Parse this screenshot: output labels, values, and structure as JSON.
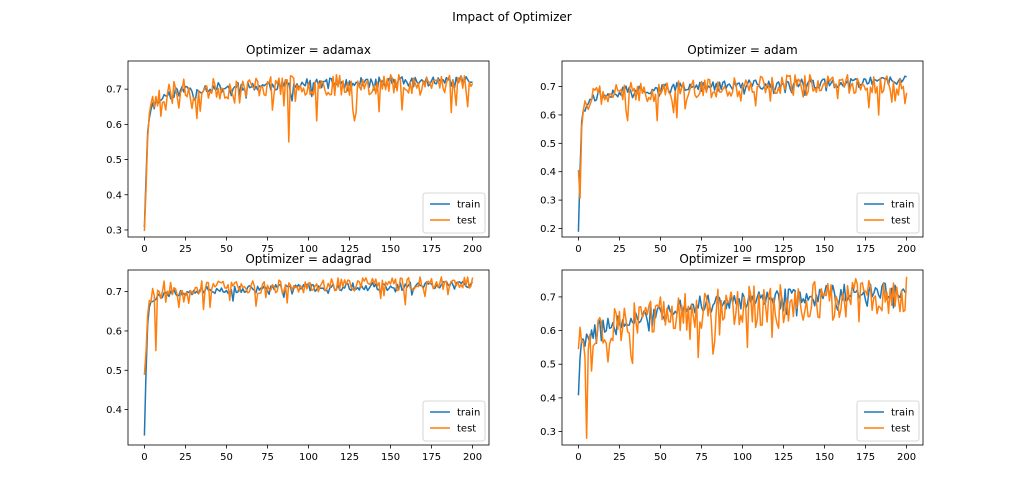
{
  "figure": {
    "title": "Impact of Optimizer"
  },
  "chart_data": [
    {
      "type": "line",
      "title": "Optimizer = adamax",
      "xlabel": "",
      "ylabel": "",
      "xlim": [
        -10,
        210
      ],
      "ylim": [
        0.28,
        0.78
      ],
      "xticks": [
        0,
        25,
        50,
        75,
        100,
        125,
        150,
        175,
        200
      ],
      "yticks": [
        0.3,
        0.4,
        0.5,
        0.6,
        0.7
      ],
      "grid": false,
      "legend": "lower-right",
      "series": [
        {
          "name": "train",
          "color": "#1f77b4",
          "seed": 11,
          "amp": 0.015,
          "points": [
            [
              0,
              0.31
            ],
            [
              1,
              0.45
            ],
            [
              2,
              0.58
            ],
            [
              3,
              0.62
            ],
            [
              5,
              0.65
            ],
            [
              8,
              0.67
            ],
            [
              12,
              0.68
            ],
            [
              18,
              0.69
            ],
            [
              25,
              0.7
            ],
            [
              50,
              0.705
            ],
            [
              75,
              0.71
            ],
            [
              100,
              0.715
            ],
            [
              150,
              0.72
            ],
            [
              200,
              0.725
            ]
          ]
        },
        {
          "name": "test",
          "color": "#ff7f0e",
          "seed": 23,
          "amp": 0.03,
          "points": [
            [
              0,
              0.3
            ],
            [
              1,
              0.42
            ],
            [
              2,
              0.56
            ],
            [
              3,
              0.63
            ],
            [
              5,
              0.66
            ],
            [
              8,
              0.67
            ],
            [
              12,
              0.68
            ],
            [
              18,
              0.7
            ],
            [
              25,
              0.7
            ],
            [
              50,
              0.7
            ],
            [
              75,
              0.71
            ],
            [
              100,
              0.71
            ],
            [
              150,
              0.715
            ],
            [
              200,
              0.72
            ]
          ],
          "spikes": [
            [
              88,
              0.55
            ],
            [
              105,
              0.61
            ],
            [
              128,
              0.61
            ],
            [
              197,
              0.65
            ]
          ]
        }
      ]
    },
    {
      "type": "line",
      "title": "Optimizer = adam",
      "xlabel": "",
      "ylabel": "",
      "xlim": [
        -10,
        210
      ],
      "ylim": [
        0.17,
        0.79
      ],
      "xticks": [
        0,
        25,
        50,
        75,
        100,
        125,
        150,
        175,
        200
      ],
      "yticks": [
        0.2,
        0.3,
        0.4,
        0.5,
        0.6,
        0.7
      ],
      "grid": false,
      "legend": "lower-right",
      "series": [
        {
          "name": "train",
          "color": "#1f77b4",
          "seed": 37,
          "amp": 0.018,
          "points": [
            [
              0,
              0.19
            ],
            [
              1,
              0.4
            ],
            [
              2,
              0.58
            ],
            [
              3,
              0.62
            ],
            [
              5,
              0.64
            ],
            [
              8,
              0.66
            ],
            [
              12,
              0.67
            ],
            [
              20,
              0.68
            ],
            [
              40,
              0.69
            ],
            [
              75,
              0.7
            ],
            [
              100,
              0.705
            ],
            [
              150,
              0.71
            ],
            [
              200,
              0.72
            ]
          ]
        },
        {
          "name": "test",
          "color": "#ff7f0e",
          "seed": 41,
          "amp": 0.035,
          "points": [
            [
              0,
              0.41
            ],
            [
              1,
              0.3
            ],
            [
              2,
              0.55
            ],
            [
              3,
              0.62
            ],
            [
              5,
              0.65
            ],
            [
              8,
              0.66
            ],
            [
              12,
              0.67
            ],
            [
              20,
              0.68
            ],
            [
              40,
              0.68
            ],
            [
              75,
              0.69
            ],
            [
              100,
              0.7
            ],
            [
              150,
              0.71
            ],
            [
              200,
              0.71
            ]
          ],
          "spikes": [
            [
              30,
              0.58
            ],
            [
              48,
              0.58
            ],
            [
              60,
              0.59
            ],
            [
              183,
              0.6
            ],
            [
              199,
              0.64
            ]
          ]
        }
      ]
    },
    {
      "type": "line",
      "title": "Optimizer = adagrad",
      "xlabel": "",
      "ylabel": "",
      "xlim": [
        -10,
        210
      ],
      "ylim": [
        0.31,
        0.755
      ],
      "xticks": [
        0,
        25,
        50,
        75,
        100,
        125,
        150,
        175,
        200
      ],
      "yticks": [
        0.4,
        0.5,
        0.6,
        0.7
      ],
      "grid": false,
      "legend": "lower-right",
      "series": [
        {
          "name": "train",
          "color": "#1f77b4",
          "seed": 53,
          "amp": 0.01,
          "points": [
            [
              0,
              0.335
            ],
            [
              1,
              0.5
            ],
            [
              2,
              0.62
            ],
            [
              3,
              0.66
            ],
            [
              5,
              0.68
            ],
            [
              8,
              0.69
            ],
            [
              12,
              0.695
            ],
            [
              20,
              0.7
            ],
            [
              50,
              0.705
            ],
            [
              100,
              0.71
            ],
            [
              150,
              0.715
            ],
            [
              200,
              0.72
            ]
          ]
        },
        {
          "name": "test",
          "color": "#ff7f0e",
          "seed": 67,
          "amp": 0.018,
          "points": [
            [
              0,
              0.49
            ],
            [
              1,
              0.55
            ],
            [
              2,
              0.64
            ],
            [
              3,
              0.68
            ],
            [
              5,
              0.7
            ],
            [
              8,
              0.7
            ],
            [
              12,
              0.71
            ],
            [
              20,
              0.71
            ],
            [
              50,
              0.71
            ],
            [
              100,
              0.715
            ],
            [
              150,
              0.72
            ],
            [
              200,
              0.725
            ]
          ],
          "spikes": [
            [
              7,
              0.55
            ],
            [
              21,
              0.66
            ],
            [
              40,
              0.66
            ]
          ]
        }
      ]
    },
    {
      "type": "line",
      "title": "Optimizer = rmsprop",
      "xlabel": "",
      "ylabel": "",
      "xlim": [
        -10,
        210
      ],
      "ylim": [
        0.26,
        0.78
      ],
      "xticks": [
        0,
        25,
        50,
        75,
        100,
        125,
        150,
        175,
        200
      ],
      "yticks": [
        0.3,
        0.4,
        0.5,
        0.6,
        0.7
      ],
      "grid": false,
      "legend": "lower-right",
      "series": [
        {
          "name": "train",
          "color": "#1f77b4",
          "seed": 79,
          "amp": 0.025,
          "points": [
            [
              0,
              0.41
            ],
            [
              1,
              0.52
            ],
            [
              2,
              0.57
            ],
            [
              5,
              0.58
            ],
            [
              10,
              0.6
            ],
            [
              25,
              0.63
            ],
            [
              50,
              0.66
            ],
            [
              75,
              0.68
            ],
            [
              100,
              0.69
            ],
            [
              125,
              0.7
            ],
            [
              150,
              0.71
            ],
            [
              175,
              0.715
            ],
            [
              200,
              0.72
            ]
          ]
        },
        {
          "name": "test",
          "color": "#ff7f0e",
          "seed": 97,
          "amp": 0.06,
          "points": [
            [
              0,
              0.55
            ],
            [
              1,
              0.62
            ],
            [
              2,
              0.57
            ],
            [
              5,
              0.58
            ],
            [
              10,
              0.6
            ],
            [
              25,
              0.62
            ],
            [
              50,
              0.64
            ],
            [
              75,
              0.66
            ],
            [
              100,
              0.67
            ],
            [
              125,
              0.68
            ],
            [
              150,
              0.69
            ],
            [
              175,
              0.7
            ],
            [
              200,
              0.7
            ]
          ],
          "spikes": [
            [
              5,
              0.28
            ],
            [
              8,
              0.48
            ],
            [
              73,
              0.52
            ],
            [
              82,
              0.53
            ],
            [
              103,
              0.55
            ],
            [
              118,
              0.58
            ],
            [
              199,
              0.66
            ]
          ]
        }
      ]
    }
  ]
}
